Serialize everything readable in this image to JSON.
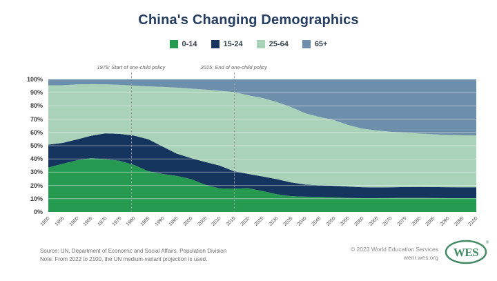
{
  "title": "China's Changing Demographics",
  "colors": {
    "title_navy": "#243d61",
    "age_0_14_green": "#279a52",
    "age_15_24_navy": "#16355e",
    "age_25_64_sage": "#a9d2b8",
    "age_65_plus_steel": "#6d8fac",
    "logo_green": "#418a63"
  },
  "legend": [
    {
      "label": "0-14",
      "color": "#279a52"
    },
    {
      "label": "15-24",
      "color": "#16355e"
    },
    {
      "label": "25-64",
      "color": "#a9d2b8"
    },
    {
      "label": "65+",
      "color": "#6d8fac"
    }
  ],
  "chart_data": {
    "type": "area",
    "stacked": true,
    "unit": "percent of population",
    "title": "China's Changing Demographics",
    "grid": "horizontal white lines every 10%",
    "legend_position": "top",
    "ylim": [
      0,
      100
    ],
    "y_ticks": [
      "0%",
      "10%",
      "20%",
      "30%",
      "40%",
      "50%",
      "60%",
      "70%",
      "80%",
      "90%",
      "100%"
    ],
    "x": [
      1950,
      1955,
      1960,
      1965,
      1970,
      1975,
      1980,
      1985,
      1990,
      1995,
      2000,
      2005,
      2010,
      2015,
      2020,
      2025,
      2030,
      2035,
      2040,
      2045,
      2050,
      2055,
      2060,
      2065,
      2070,
      2075,
      2080,
      2085,
      2090,
      2095,
      2100
    ],
    "series": [
      {
        "name": "0-14",
        "color": "#279a52",
        "values": [
          33.5,
          36.3,
          39.0,
          40.6,
          39.8,
          38.6,
          35.5,
          30.8,
          28.7,
          27.2,
          24.8,
          20.5,
          17.8,
          17.5,
          17.9,
          15.8,
          13.4,
          11.9,
          11.5,
          11.4,
          11.0,
          10.6,
          10.4,
          10.4,
          10.5,
          10.6,
          10.6,
          10.5,
          10.4,
          10.4,
          10.4
        ]
      },
      {
        "name": "15-24",
        "color": "#16355e",
        "values": [
          17.3,
          15.8,
          15.7,
          16.9,
          19.5,
          20.3,
          22.1,
          24.1,
          20.7,
          16.8,
          15.8,
          17.2,
          17.2,
          13.3,
          10.8,
          11.0,
          11.4,
          10.4,
          9.2,
          8.7,
          8.7,
          8.6,
          8.3,
          8.1,
          8.1,
          8.2,
          8.3,
          8.3,
          8.3,
          8.2,
          8.2
        ]
      },
      {
        "name": "25-64",
        "color": "#a9d2b8",
        "values": [
          44.7,
          43.5,
          41.5,
          38.9,
          37.0,
          37.0,
          37.7,
          39.8,
          45.0,
          49.8,
          52.5,
          54.6,
          56.4,
          59.7,
          59.3,
          59.2,
          58.2,
          56.9,
          53.8,
          51.5,
          49.7,
          46.5,
          44.2,
          43.0,
          41.9,
          41.0,
          40.3,
          39.8,
          39.4,
          39.2,
          39.1
        ]
      },
      {
        "name": "65+",
        "color": "#6d8fac",
        "values": [
          4.5,
          4.4,
          3.8,
          3.6,
          3.7,
          4.1,
          4.7,
          5.3,
          5.6,
          6.2,
          6.9,
          7.7,
          8.6,
          9.5,
          12.0,
          14.0,
          17.0,
          20.8,
          25.5,
          28.4,
          30.6,
          34.3,
          37.1,
          38.5,
          39.5,
          40.2,
          40.8,
          41.4,
          41.9,
          42.2,
          42.3
        ]
      }
    ],
    "annotations": [
      {
        "year": 1979,
        "label": "1979: Start of one-child policy"
      },
      {
        "year": 2015,
        "label": "2015: End of one-child policy"
      }
    ]
  },
  "footer": {
    "source": "Source: UN, Department of Economic and Social Affairs, Population Division",
    "note": "Note: From 2022 to 2100, the UN medium-variant projection is used.",
    "copyright": "© 2023 World Education Services",
    "website": "wenr.wes.org",
    "logo_text": "WES",
    "logo_mark": "®"
  }
}
